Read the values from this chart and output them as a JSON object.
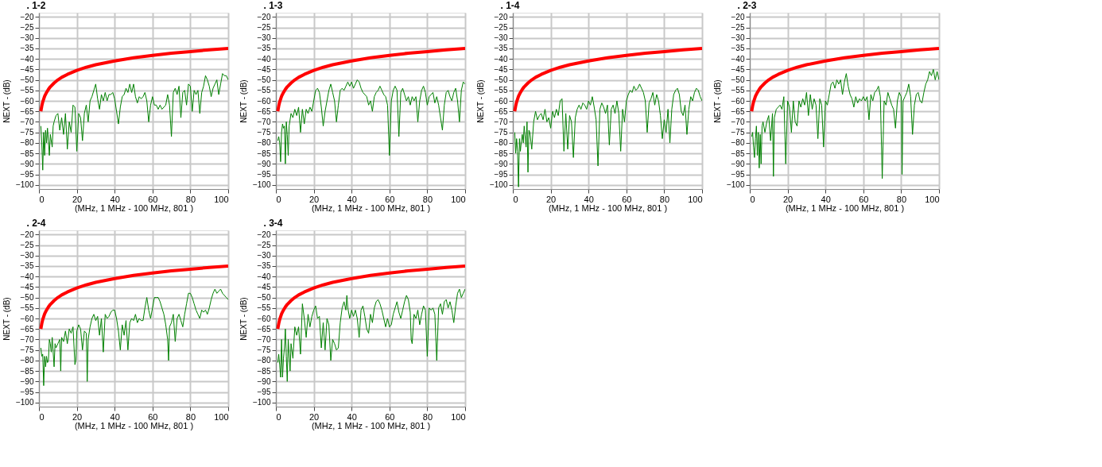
{
  "chart_data": [
    {
      "type": "line",
      "title": ". 1-2",
      "xlabel": "(MHz, 1 MHz - 100 MHz, 801          )",
      "ylabel": "NEXT -               (dB)",
      "xlim": [
        0,
        100
      ],
      "xticks": [
        0,
        20,
        40,
        60,
        80,
        100
      ],
      "ylim": [
        -102,
        -18
      ],
      "yticks": [
        -20,
        -25,
        -30,
        -35,
        -40,
        -45,
        -50,
        -55,
        -60,
        -65,
        -70,
        -75,
        -80,
        -85,
        -90,
        -95,
        -100
      ],
      "grid": true,
      "series": [
        {
          "color": "#ff0000",
          "x": [
            1,
            1.5,
            2,
            3,
            4,
            5,
            6,
            8,
            10,
            12,
            15,
            20,
            25,
            30,
            40,
            50,
            60,
            70,
            80,
            90,
            100
          ],
          "values": [
            -65,
            -62.4,
            -60.5,
            -57.8,
            -56,
            -54.5,
            -53.3,
            -51.5,
            -50,
            -48.8,
            -47.4,
            -45.5,
            -44,
            -42.8,
            -41,
            -39.5,
            -38.3,
            -37.3,
            -36.5,
            -35.7,
            -35
          ]
        },
        {
          "color": "#008000",
          "x": [
            1,
            1.5,
            2,
            2.5,
            3,
            3.5,
            4,
            4.5,
            5,
            5.5,
            6,
            7,
            7.5,
            8,
            9,
            10,
            11,
            12,
            13,
            14,
            15,
            16,
            17,
            18,
            19,
            20,
            21,
            22,
            23,
            24,
            25,
            26,
            27,
            28,
            29,
            30,
            31,
            32,
            33,
            34,
            35,
            36,
            37,
            38,
            39,
            40,
            41,
            42,
            43,
            44,
            45,
            46,
            47,
            48,
            49,
            50,
            51,
            52,
            53,
            54,
            55,
            56,
            57,
            58,
            59,
            60,
            61,
            62,
            63,
            64,
            65,
            66,
            67,
            68,
            69,
            70,
            71,
            72,
            73,
            74,
            75,
            76,
            77,
            78,
            79,
            80,
            81,
            82,
            83,
            84,
            85,
            86,
            87,
            88,
            89,
            90,
            91,
            92,
            93,
            94,
            95,
            96,
            97,
            98,
            99,
            100
          ],
          "values": [
            -72,
            -80,
            -93,
            -75,
            -86,
            -74,
            -80,
            -73,
            -79,
            -86,
            -76,
            -82,
            -72,
            -70,
            -67,
            -66,
            -74,
            -68,
            -76,
            -66,
            -83,
            -70,
            -75,
            -62,
            -63,
            -84,
            -66,
            -68,
            -79,
            -66,
            -62,
            -70,
            -60,
            -58,
            -55,
            -52,
            -59,
            -64,
            -57,
            -60,
            -56,
            -60,
            -57,
            -57,
            -56,
            -59,
            -65,
            -71,
            -63,
            -58,
            -57,
            -54,
            -56,
            -52,
            -56,
            -52,
            -58,
            -61,
            -58,
            -59,
            -58,
            -56,
            -60,
            -70,
            -62,
            -58,
            -62,
            -62,
            -64,
            -62,
            -64,
            -63,
            -62,
            -57,
            -62,
            -77,
            -56,
            -54,
            -57,
            -53,
            -68,
            -56,
            -55,
            -62,
            -52,
            -53,
            -65,
            -55,
            -57,
            -55,
            -66,
            -56,
            -53,
            -48,
            -50,
            -53,
            -58,
            -54,
            -52,
            -50,
            -57,
            -52,
            -47,
            -48,
            -48,
            -50
          ]
        }
      ]
    },
    {
      "type": "line",
      "title": ". 1-3",
      "xlabel": "(MHz, 1 MHz - 100 MHz, 801          )",
      "ylabel": "NEXT -               (dB)",
      "xlim": [
        0,
        100
      ],
      "xticks": [
        0,
        20,
        40,
        60,
        80,
        100
      ],
      "ylim": [
        -102,
        -18
      ],
      "yticks": [
        -20,
        -25,
        -30,
        -35,
        -40,
        -45,
        -50,
        -55,
        -60,
        -65,
        -70,
        -75,
        -80,
        -85,
        -90,
        -95,
        -100
      ],
      "grid": true,
      "series": [
        {
          "color": "#ff0000",
          "x": [
            1,
            1.5,
            2,
            3,
            4,
            5,
            6,
            8,
            10,
            12,
            15,
            20,
            25,
            30,
            40,
            50,
            60,
            70,
            80,
            90,
            100
          ],
          "values": [
            -65,
            -62.4,
            -60.5,
            -57.8,
            -56,
            -54.5,
            -53.3,
            -51.5,
            -50,
            -48.8,
            -47.4,
            -45.5,
            -44,
            -42.8,
            -41,
            -39.5,
            -38.3,
            -37.3,
            -36.5,
            -35.7,
            -35
          ]
        },
        {
          "color": "#008000",
          "x": [
            1,
            1.5,
            2,
            2.5,
            3,
            3.5,
            4,
            4.5,
            5,
            5.5,
            6,
            6.5,
            7,
            8,
            9,
            10,
            11,
            12,
            13,
            14,
            15,
            16,
            17,
            18,
            19,
            20,
            21,
            22,
            23,
            24,
            25,
            26,
            27,
            28,
            29,
            30,
            31,
            32,
            33,
            34,
            35,
            36,
            37,
            38,
            39,
            40,
            41,
            42,
            43,
            44,
            45,
            46,
            47,
            48,
            49,
            50,
            51,
            52,
            53,
            54,
            55,
            56,
            57,
            58,
            59,
            60,
            61,
            62,
            63,
            64,
            65,
            66,
            67,
            68,
            69,
            70,
            71,
            72,
            73,
            74,
            75,
            76,
            77,
            78,
            79,
            80,
            81,
            82,
            83,
            84,
            85,
            86,
            87,
            88,
            89,
            90,
            91,
            92,
            93,
            94,
            95,
            96,
            97,
            98,
            99,
            100
          ],
          "values": [
            -79,
            -77,
            -80,
            -89,
            -75,
            -71,
            -73,
            -72,
            -90,
            -70,
            -76,
            -86,
            -72,
            -66,
            -68,
            -64,
            -67,
            -63,
            -75,
            -64,
            -71,
            -64,
            -66,
            -63,
            -65,
            -60,
            -55,
            -54,
            -56,
            -63,
            -72,
            -65,
            -60,
            -55,
            -52,
            -56,
            -60,
            -70,
            -62,
            -55,
            -54,
            -55,
            -53,
            -51,
            -53,
            -51,
            -54,
            -52,
            -50,
            -51,
            -54,
            -56,
            -57,
            -58,
            -62,
            -60,
            -65,
            -58,
            -56,
            -55,
            -53,
            -55,
            -57,
            -58,
            -62,
            -86,
            -60,
            -55,
            -53,
            -55,
            -77,
            -56,
            -54,
            -57,
            -60,
            -58,
            -62,
            -58,
            -60,
            -58,
            -70,
            -60,
            -55,
            -53,
            -56,
            -62,
            -58,
            -57,
            -56,
            -61,
            -58,
            -62,
            -68,
            -74,
            -62,
            -56,
            -55,
            -58,
            -60,
            -56,
            -54,
            -60,
            -70,
            -55,
            -51,
            -52
          ]
        }
      ]
    },
    {
      "type": "line",
      "title": ". 1-4",
      "xlabel": "(MHz, 1 MHz - 100 MHz, 801          )",
      "ylabel": "NEXT -               (dB)",
      "xlim": [
        0,
        100
      ],
      "xticks": [
        0,
        20,
        40,
        60,
        80,
        100
      ],
      "ylim": [
        -102,
        -18
      ],
      "yticks": [
        -20,
        -25,
        -30,
        -35,
        -40,
        -45,
        -50,
        -55,
        -60,
        -65,
        -70,
        -75,
        -80,
        -85,
        -90,
        -95,
        -100
      ],
      "grid": true,
      "series": [
        {
          "color": "#ff0000",
          "x": [
            1,
            1.5,
            2,
            3,
            4,
            5,
            6,
            8,
            10,
            12,
            15,
            20,
            25,
            30,
            40,
            50,
            60,
            70,
            80,
            90,
            100
          ],
          "values": [
            -65,
            -62.4,
            -60.5,
            -57.8,
            -56,
            -54.5,
            -53.3,
            -51.5,
            -50,
            -48.8,
            -47.4,
            -45.5,
            -44,
            -42.8,
            -41,
            -39.5,
            -38.3,
            -37.3,
            -36.5,
            -35.7,
            -35
          ]
        },
        {
          "color": "#008000",
          "x": [
            1,
            1.5,
            2,
            2.5,
            3,
            3.5,
            4,
            4.5,
            5,
            5.5,
            6,
            7,
            7.5,
            8,
            8.5,
            9,
            10,
            11,
            12,
            13,
            14,
            15,
            16,
            17,
            18,
            19,
            20,
            21,
            22,
            23,
            24,
            25,
            26,
            27,
            28,
            29,
            30,
            31,
            32,
            33,
            34,
            35,
            36,
            37,
            38,
            39,
            40,
            41,
            42,
            43,
            44,
            45,
            46,
            47,
            48,
            49,
            50,
            51,
            52,
            53,
            54,
            55,
            56,
            57,
            58,
            59,
            60,
            61,
            62,
            63,
            64,
            65,
            66,
            67,
            68,
            69,
            70,
            71,
            72,
            73,
            74,
            75,
            76,
            77,
            78,
            79,
            80,
            81,
            82,
            83,
            84,
            85,
            86,
            87,
            88,
            89,
            90,
            91,
            92,
            93,
            94,
            95,
            96,
            97,
            98,
            99,
            100
          ],
          "values": [
            -75,
            -85,
            -78,
            -84,
            -101,
            -78,
            -84,
            -79,
            -76,
            -80,
            -72,
            -82,
            -70,
            -94,
            -74,
            -75,
            -83,
            -70,
            -65,
            -69,
            -67,
            -66,
            -69,
            -64,
            -70,
            -68,
            -73,
            -65,
            -68,
            -64,
            -67,
            -60,
            -59,
            -84,
            -66,
            -83,
            -67,
            -70,
            -87,
            -68,
            -64,
            -62,
            -64,
            -61,
            -62,
            -64,
            -60,
            -62,
            -58,
            -63,
            -69,
            -91,
            -64,
            -61,
            -63,
            -66,
            -62,
            -81,
            -64,
            -62,
            -66,
            -60,
            -66,
            -84,
            -64,
            -70,
            -60,
            -57,
            -55,
            -56,
            -53,
            -55,
            -54,
            -52,
            -54,
            -56,
            -60,
            -75,
            -61,
            -59,
            -56,
            -62,
            -57,
            -60,
            -67,
            -78,
            -69,
            -75,
            -64,
            -80,
            -64,
            -57,
            -55,
            -54,
            -57,
            -65,
            -67,
            -62,
            -76,
            -64,
            -58,
            -60,
            -56,
            -54,
            -55,
            -58,
            -60
          ]
        }
      ]
    },
    {
      "type": "line",
      "title": ". 2-3",
      "xlabel": "(MHz, 1 MHz - 100 MHz, 801          )",
      "ylabel": "NEXT -               (dB)",
      "xlim": [
        0,
        100
      ],
      "xticks": [
        0,
        20,
        40,
        60,
        80,
        100
      ],
      "ylim": [
        -102,
        -18
      ],
      "yticks": [
        -20,
        -25,
        -30,
        -35,
        -40,
        -45,
        -50,
        -55,
        -60,
        -65,
        -70,
        -75,
        -80,
        -85,
        -90,
        -95,
        -100
      ],
      "grid": true,
      "series": [
        {
          "color": "#ff0000",
          "x": [
            1,
            1.5,
            2,
            3,
            4,
            5,
            6,
            8,
            10,
            12,
            15,
            20,
            25,
            30,
            40,
            50,
            60,
            70,
            80,
            90,
            100
          ],
          "values": [
            -65,
            -62.4,
            -60.5,
            -57.8,
            -56,
            -54.5,
            -53.3,
            -51.5,
            -50,
            -48.8,
            -47.4,
            -45.5,
            -44,
            -42.8,
            -41,
            -39.5,
            -38.3,
            -37.3,
            -36.5,
            -35.7,
            -35
          ]
        },
        {
          "color": "#008000",
          "x": [
            1,
            1.5,
            2,
            2.5,
            3,
            3.5,
            4,
            4.5,
            5,
            5.5,
            6,
            6.5,
            7,
            8,
            9,
            10,
            11,
            12,
            12.5,
            13,
            14,
            15,
            16,
            17,
            18,
            19,
            20,
            21,
            22,
            23,
            24,
            25,
            26,
            27,
            28,
            29,
            30,
            31,
            32,
            33,
            34,
            35,
            36,
            37,
            38,
            39,
            40,
            41,
            42,
            43,
            44,
            45,
            46,
            47,
            48,
            49,
            50,
            51,
            52,
            53,
            54,
            55,
            56,
            57,
            58,
            59,
            60,
            61,
            62,
            63,
            64,
            65,
            66,
            67,
            68,
            69,
            70,
            71,
            72,
            73,
            74,
            75,
            76,
            77,
            78,
            79,
            80,
            80.5,
            81,
            82,
            83,
            84,
            85,
            86,
            87,
            88,
            89,
            90,
            91,
            92,
            93,
            94,
            95,
            96,
            97,
            98,
            99,
            100
          ],
          "values": [
            -77,
            -75,
            -82,
            -87,
            -78,
            -72,
            -86,
            -75,
            -92,
            -76,
            -90,
            -72,
            -70,
            -75,
            -70,
            -67,
            -79,
            -66,
            -96,
            -68,
            -64,
            -63,
            -62,
            -64,
            -58,
            -90,
            -60,
            -63,
            -75,
            -60,
            -70,
            -72,
            -60,
            -63,
            -59,
            -62,
            -56,
            -67,
            -57,
            -64,
            -59,
            -62,
            -78,
            -59,
            -62,
            -82,
            -60,
            -62,
            -57,
            -52,
            -51,
            -54,
            -50,
            -52,
            -50,
            -57,
            -51,
            -47,
            -53,
            -57,
            -59,
            -63,
            -58,
            -61,
            -59,
            -60,
            -58,
            -60,
            -58,
            -69,
            -57,
            -60,
            -56,
            -55,
            -53,
            -58,
            -97,
            -60,
            -62,
            -56,
            -59,
            -62,
            -64,
            -73,
            -60,
            -56,
            -58,
            -95,
            -60,
            -58,
            -56,
            -52,
            -58,
            -76,
            -62,
            -57,
            -56,
            -60,
            -61,
            -56,
            -52,
            -50,
            -46,
            -48,
            -45,
            -50,
            -46,
            -50
          ]
        }
      ]
    },
    {
      "type": "line",
      "title": ". 2-4",
      "xlabel": "(MHz, 1 MHz - 100 MHz, 801          )",
      "ylabel": "NEXT -               (dB)",
      "xlim": [
        0,
        100
      ],
      "xticks": [
        0,
        20,
        40,
        60,
        80,
        100
      ],
      "ylim": [
        -102,
        -18
      ],
      "yticks": [
        -20,
        -25,
        -30,
        -35,
        -40,
        -45,
        -50,
        -55,
        -60,
        -65,
        -70,
        -75,
        -80,
        -85,
        -90,
        -95,
        -100
      ],
      "grid": true,
      "series": [
        {
          "color": "#ff0000",
          "x": [
            1,
            1.5,
            2,
            3,
            4,
            5,
            6,
            8,
            10,
            12,
            15,
            20,
            25,
            30,
            40,
            50,
            60,
            70,
            80,
            90,
            100
          ],
          "values": [
            -65,
            -62.4,
            -60.5,
            -57.8,
            -56,
            -54.5,
            -53.3,
            -51.5,
            -50,
            -48.8,
            -47.4,
            -45.5,
            -44,
            -42.8,
            -41,
            -39.5,
            -38.3,
            -37.3,
            -36.5,
            -35.7,
            -35
          ]
        },
        {
          "color": "#008000",
          "x": [
            1,
            1.5,
            2,
            2.5,
            3,
            3.5,
            4,
            4.5,
            5,
            5.5,
            6,
            6.5,
            7,
            8,
            8.5,
            9,
            10,
            11,
            11.5,
            12,
            13,
            14,
            15,
            16,
            17,
            18,
            19,
            19.5,
            20,
            21,
            22,
            23,
            24,
            25,
            25.5,
            26,
            27,
            28,
            29,
            30,
            31,
            32,
            33,
            34,
            35,
            36,
            37,
            38,
            39,
            40,
            41,
            42,
            43,
            44,
            45,
            46,
            47,
            48,
            49,
            50,
            51,
            52,
            53,
            54,
            55,
            56,
            57,
            58,
            59,
            60,
            61,
            62,
            63,
            64,
            65,
            66,
            67,
            68,
            68.5,
            69,
            70,
            71,
            72,
            73,
            74,
            75,
            76,
            77,
            78,
            79,
            80,
            81,
            82,
            83,
            84,
            85,
            86,
            87,
            88,
            89,
            90,
            91,
            92,
            93,
            94,
            95,
            96,
            97,
            98,
            99,
            100
          ],
          "values": [
            -74,
            -78,
            -77,
            -92,
            -78,
            -83,
            -78,
            -81,
            -80,
            -70,
            -72,
            -76,
            -69,
            -83,
            -72,
            -74,
            -72,
            -70,
            -85,
            -69,
            -71,
            -66,
            -72,
            -65,
            -67,
            -64,
            -82,
            -80,
            -66,
            -63,
            -65,
            -75,
            -66,
            -67,
            -90,
            -70,
            -64,
            -60,
            -58,
            -61,
            -59,
            -68,
            -60,
            -76,
            -58,
            -60,
            -59,
            -57,
            -56,
            -56,
            -60,
            -66,
            -75,
            -63,
            -68,
            -61,
            -75,
            -62,
            -60,
            -61,
            -58,
            -62,
            -60,
            -61,
            -61,
            -55,
            -50,
            -56,
            -60,
            -55,
            -50,
            -50,
            -50,
            -52,
            -55,
            -58,
            -63,
            -70,
            -80,
            -64,
            -62,
            -58,
            -71,
            -60,
            -58,
            -61,
            -64,
            -58,
            -53,
            -48,
            -48,
            -50,
            -53,
            -56,
            -58,
            -60,
            -56,
            -57,
            -56,
            -58,
            -55,
            -51,
            -48,
            -46,
            -48,
            -47,
            -46,
            -48,
            -49,
            -50,
            -51
          ]
        }
      ]
    },
    {
      "type": "line",
      "title": ". 3-4",
      "xlabel": "(MHz, 1 MHz - 100 MHz, 801          )",
      "ylabel": "NEXT -               (dB)",
      "xlim": [
        0,
        100
      ],
      "xticks": [
        0,
        20,
        40,
        60,
        80,
        100
      ],
      "ylim": [
        -102,
        -18
      ],
      "yticks": [
        -20,
        -25,
        -30,
        -35,
        -40,
        -45,
        -50,
        -55,
        -60,
        -65,
        -70,
        -75,
        -80,
        -85,
        -90,
        -95,
        -100
      ],
      "grid": true,
      "series": [
        {
          "color": "#ff0000",
          "x": [
            1,
            1.5,
            2,
            3,
            4,
            5,
            6,
            8,
            10,
            12,
            15,
            20,
            25,
            30,
            40,
            50,
            60,
            70,
            80,
            90,
            100
          ],
          "values": [
            -65,
            -62.4,
            -60.5,
            -57.8,
            -56,
            -54.5,
            -53.3,
            -51.5,
            -50,
            -48.8,
            -47.4,
            -45.5,
            -44,
            -42.8,
            -41,
            -39.5,
            -38.3,
            -37.3,
            -36.5,
            -35.7,
            -35
          ]
        },
        {
          "color": "#008000",
          "x": [
            1,
            1.5,
            2,
            2.5,
            3,
            3.5,
            4,
            4.5,
            5,
            5.5,
            6,
            6.5,
            7,
            7.5,
            8,
            9,
            10,
            11,
            12,
            13,
            14,
            15,
            16,
            17,
            18,
            19,
            20,
            21,
            22,
            23,
            24,
            25,
            26,
            27,
            28,
            29,
            30,
            31,
            32,
            33,
            34,
            35,
            36,
            37,
            37.5,
            38,
            39,
            40,
            41,
            42,
            43,
            44,
            45,
            46,
            47,
            48,
            49,
            50,
            51,
            52,
            53,
            54,
            55,
            56,
            57,
            58,
            59,
            60,
            61,
            62,
            63,
            64,
            65,
            66,
            67,
            68,
            69,
            70,
            71,
            71.5,
            72,
            73,
            74,
            75,
            76,
            77,
            78,
            79,
            80,
            81,
            82,
            83,
            84,
            85,
            86,
            87,
            88,
            89,
            90,
            91,
            92,
            93,
            94,
            95,
            96,
            97,
            98,
            99,
            100
          ],
          "values": [
            -81,
            -77,
            -82,
            -88,
            -70,
            -88,
            -79,
            -74,
            -65,
            -78,
            -90,
            -70,
            -77,
            -85,
            -72,
            -79,
            -64,
            -68,
            -64,
            -77,
            -53,
            -60,
            -69,
            -58,
            -64,
            -59,
            -56,
            -54,
            -60,
            -59,
            -74,
            -62,
            -75,
            -60,
            -63,
            -80,
            -70,
            -72,
            -75,
            -74,
            -62,
            -55,
            -52,
            -56,
            -49,
            -55,
            -60,
            -56,
            -59,
            -56,
            -60,
            -69,
            -56,
            -54,
            -59,
            -65,
            -67,
            -58,
            -62,
            -55,
            -52,
            -51,
            -53,
            -56,
            -60,
            -64,
            -60,
            -64,
            -63,
            -58,
            -55,
            -52,
            -57,
            -60,
            -56,
            -52,
            -49,
            -51,
            -57,
            -70,
            -72,
            -58,
            -60,
            -56,
            -63,
            -58,
            -54,
            -56,
            -78,
            -55,
            -56,
            -55,
            -58,
            -80,
            -55,
            -53,
            -58,
            -52,
            -51,
            -55,
            -52,
            -56,
            -62,
            -54,
            -48,
            -46,
            -50,
            -48,
            -46
          ]
        }
      ]
    }
  ]
}
